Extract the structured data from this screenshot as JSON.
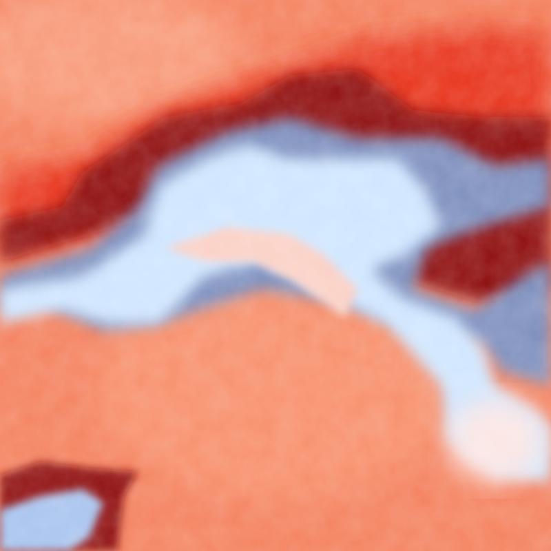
{
  "image": {
    "description_type": "abstract noise texture",
    "palette": {
      "background": "#f4825f",
      "warm_light": "#f89a78",
      "bright_red": "#e8361a",
      "dark_red": "#8e0c0c",
      "steel_blue": "#7d8fbd",
      "light_blue": "#cfe6ff",
      "pale": "#fbe6e4"
    }
  }
}
